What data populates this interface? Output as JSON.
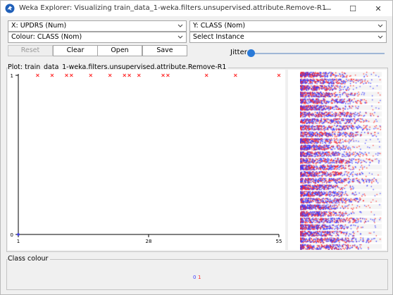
{
  "window": {
    "title": "Weka Explorer: Visualizing train_data_1-weka.filters.unsupervised.attribute.Remove-R1",
    "icon": "weka-bird-icon",
    "controls": {
      "minimize": "—",
      "maximize": "☐",
      "close": "✕"
    }
  },
  "controls": {
    "x_axis": "X: UPDRS (Num)",
    "y_axis": "Y: CLASS (Nom)",
    "colour": "Colour: CLASS (Nom)",
    "select_instance": "Select Instance",
    "reset_label": "Reset",
    "clear_label": "Clear",
    "open_label": "Open",
    "save_label": "Save",
    "jitter_label": "Jitter",
    "jitter_value": 0
  },
  "plot": {
    "label": "Plot: train_data_1-weka.filters.unsupervised.attribute.Remove-R1"
  },
  "colors": {
    "class_0": "#3b3bff",
    "class_1": "#ff2a2a",
    "axis": "#000000"
  },
  "chart_data": {
    "type": "scatter",
    "xlabel": "",
    "ylabel": "",
    "xlim": [
      1,
      55
    ],
    "ylim": [
      0,
      1
    ],
    "x_ticks": [
      "1",
      "28",
      "55"
    ],
    "y_ticks": [
      "0",
      "1"
    ],
    "series": [
      {
        "name": "0",
        "color": "#3b3bff",
        "points": [
          [
            1,
            0
          ]
        ]
      },
      {
        "name": "1",
        "color": "#ff2a2a",
        "points": [
          [
            5,
            1
          ],
          [
            8,
            1
          ],
          [
            11,
            1
          ],
          [
            12,
            1
          ],
          [
            16,
            1
          ],
          [
            20,
            1
          ],
          [
            23,
            1
          ],
          [
            24,
            1
          ],
          [
            26,
            1
          ],
          [
            31,
            1
          ],
          [
            32,
            1
          ],
          [
            40,
            1
          ],
          [
            46,
            1
          ],
          [
            55,
            1
          ]
        ]
      }
    ]
  },
  "class_colour": {
    "label": "Class colour",
    "values": [
      "0",
      "1"
    ]
  }
}
